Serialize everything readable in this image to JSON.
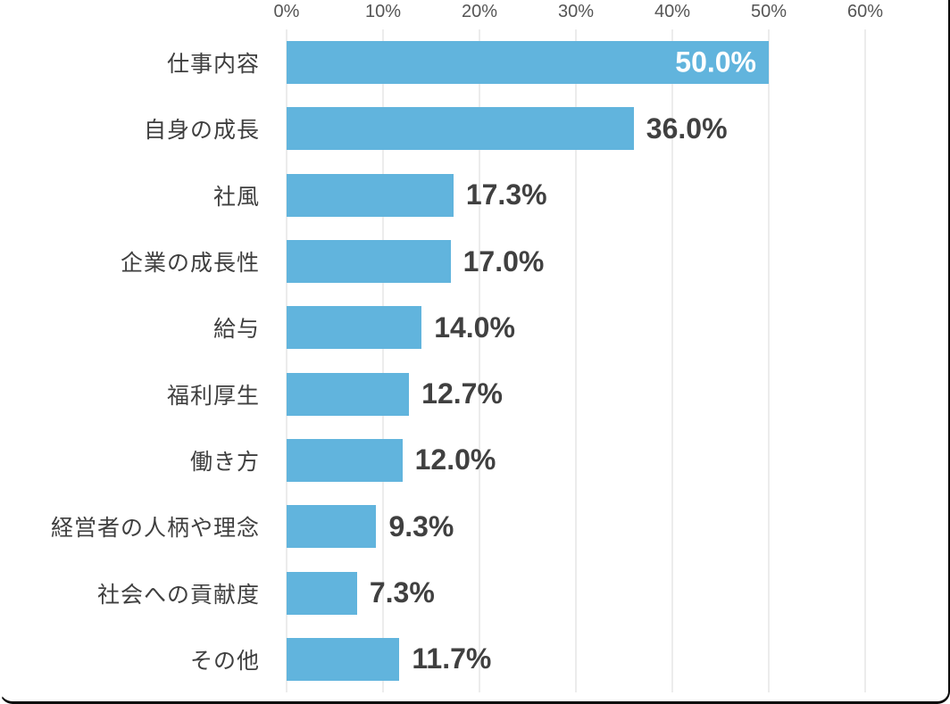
{
  "chart_data": {
    "type": "bar",
    "orientation": "horizontal",
    "title": "",
    "xlabel": "",
    "ylabel": "",
    "xlim": [
      0,
      60
    ],
    "axis_position": "top",
    "grid": true,
    "categories": [
      "仕事内容",
      "自身の成長",
      "社風",
      "企業の成長性",
      "給与",
      "福利厚生",
      "働き方",
      "経営者の人柄や理念",
      "社会への貢献度",
      "その他"
    ],
    "values": [
      50.0,
      36.0,
      17.3,
      17.0,
      14.0,
      12.7,
      12.0,
      9.3,
      7.3,
      11.7
    ],
    "value_labels": [
      "50.0%",
      "36.0%",
      "17.3%",
      "17.0%",
      "14.0%",
      "12.7%",
      "12.0%",
      "9.3%",
      "7.3%",
      "11.7%"
    ],
    "x_ticks": [
      "0%",
      "10%",
      "20%",
      "30%",
      "40%",
      "50%",
      "60%"
    ],
    "colors": {
      "bar": "#61b4dd",
      "category_label": "#3f3f3f",
      "value_label": "#404040",
      "value_label_inside": "#ffffff",
      "tick_label": "#555555",
      "gridline": "#d8d8d8",
      "frame_border": "#0a0a0a"
    },
    "notes": {
      "first_value_label_position": "inside-bar-right",
      "other_value_labels_position": "outside-bar-right"
    }
  }
}
